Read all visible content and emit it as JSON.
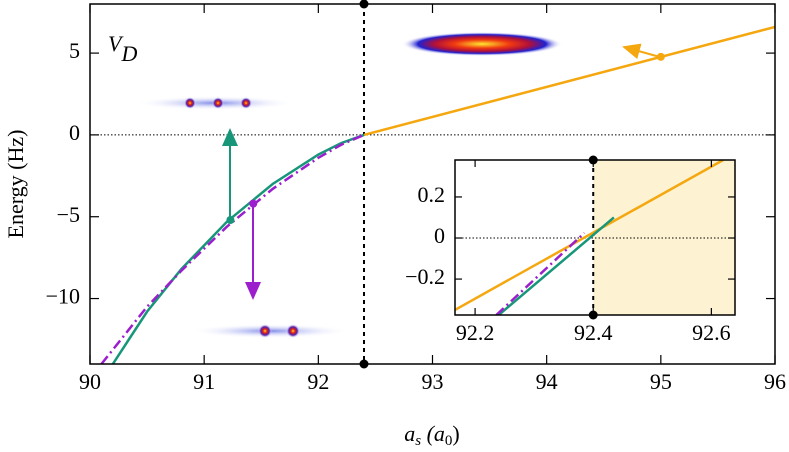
{
  "chart_data": [
    {
      "type": "line",
      "annotation": [
        "V",
        "D"
      ],
      "ylabel": "Energy (Hz)",
      "xlabel": [
        "a",
        "s",
        " (a",
        "0",
        ")"
      ],
      "xlim": [
        90,
        96
      ],
      "ylim": [
        -14,
        8
      ],
      "xticks": [
        90,
        91,
        92,
        93,
        94,
        95,
        96
      ],
      "yticks": [
        5,
        0,
        {
          "value": -5,
          "label": "−5"
        },
        {
          "value": -10,
          "label": "−10"
        }
      ],
      "vline": 92.4,
      "hline": 0,
      "series": [
        {
          "color": "#f5a70f",
          "dash": "solid",
          "x": [
            92.4,
            96
          ],
          "values": [
            0,
            6.6
          ]
        },
        {
          "color": "#17967a",
          "dash": "solid",
          "x": [
            90.2,
            90.5,
            90.8,
            91.2,
            91.6,
            92.0,
            92.2,
            92.4
          ],
          "values": [
            -14,
            -10.8,
            -8.2,
            -5.3,
            -3.0,
            -1.2,
            -0.5,
            0
          ]
        },
        {
          "color": "#9b1fcc",
          "dash": "dashdot",
          "x": [
            90.1,
            90.5,
            90.8,
            91.2,
            91.6,
            92.0,
            92.2,
            92.4
          ],
          "values": [
            -14,
            -10.5,
            -8.3,
            -5.6,
            -3.3,
            -1.4,
            -0.6,
            0
          ]
        }
      ],
      "markers": {
        "x": [
          91.23,
          91.43,
          95
        ],
        "values": [
          -5.2,
          -4.2,
          4.77
        ],
        "colors": [
          "#17967a",
          "#9b1fcc",
          "#f5a70f"
        ]
      }
    },
    {
      "type": "line",
      "xlim": [
        92.166,
        92.64
      ],
      "ylim": [
        -0.375,
        0.38
      ],
      "xticks": [
        92.2,
        92.4,
        92.6
      ],
      "yticks": [
        0.2,
        0,
        {
          "value": -0.2,
          "label": "−0.2"
        }
      ],
      "vline": 92.4,
      "hline": 0,
      "shade_from": 92.4,
      "shade_color": "#fdf3d2",
      "series": [
        {
          "color": "#f5a70f",
          "dash": "solid",
          "x": [
            92.166,
            92.62
          ],
          "values": [
            -0.35,
            0.38
          ]
        },
        {
          "color": "#17967a",
          "dash": "solid",
          "x": [
            92.24,
            92.435
          ],
          "values": [
            -0.375,
            0.1
          ]
        },
        {
          "color": "#9b1fcc",
          "dash": "dashdot",
          "x": [
            92.236,
            92.385
          ],
          "values": [
            -0.375,
            0.025
          ]
        }
      ]
    }
  ]
}
